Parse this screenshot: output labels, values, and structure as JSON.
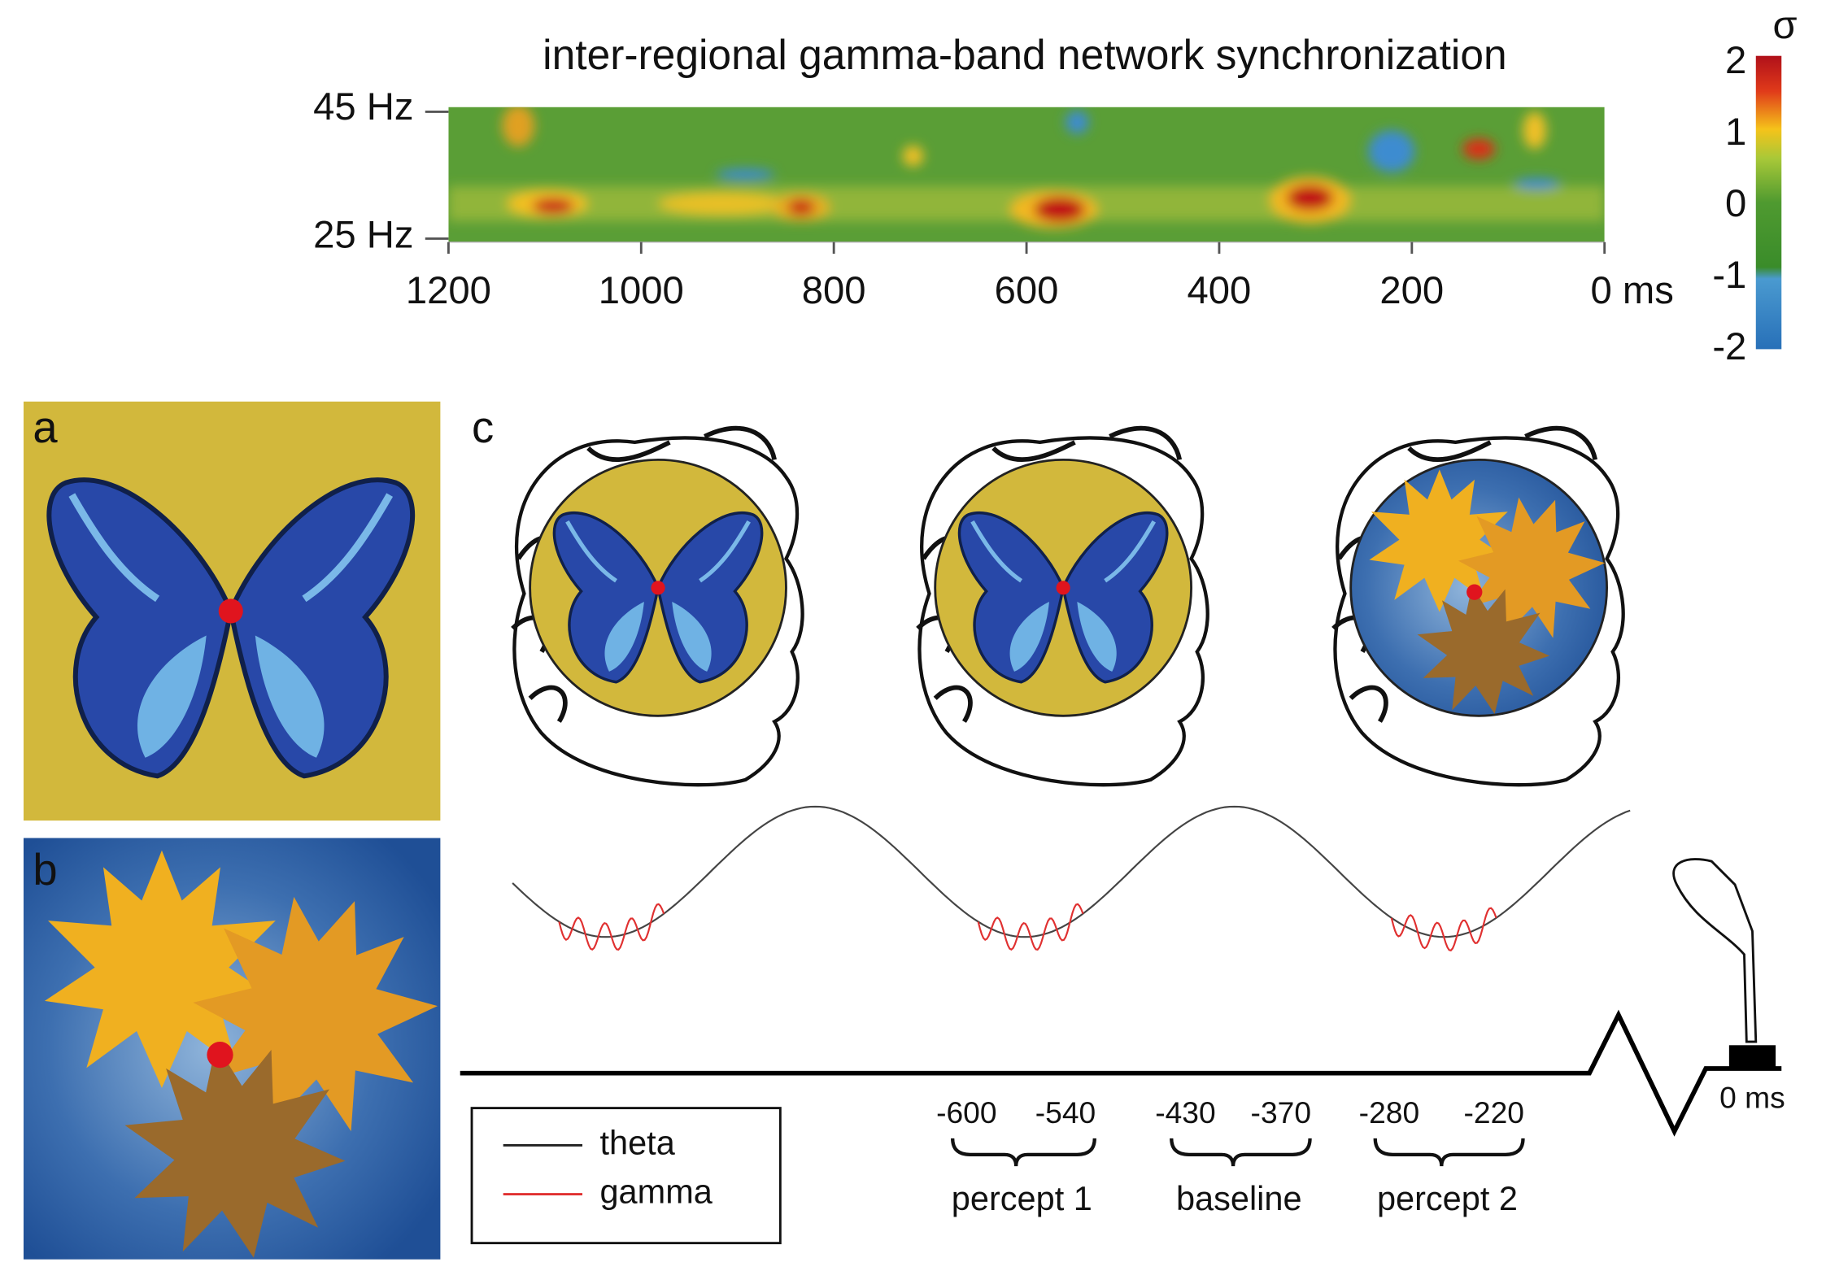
{
  "heatmap": {
    "title": "inter-regional gamma-band network synchronization",
    "y_labels": [
      "45 Hz",
      "25 Hz"
    ],
    "x_labels": [
      "1200",
      "1000",
      "800",
      "600",
      "400",
      "200",
      "0 ms"
    ],
    "colorbar": {
      "symbol": "σ",
      "labels": [
        "2",
        "1",
        "0",
        "-1",
        "-2"
      ]
    }
  },
  "panels": {
    "a": "a",
    "b": "b",
    "c": "c"
  },
  "legend": [
    "theta",
    "gamma"
  ],
  "windows": [
    {
      "start": "-600",
      "end": "-540",
      "label": "percept 1"
    },
    {
      "start": "-430",
      "end": "-370",
      "label": "baseline"
    },
    {
      "start": "-280",
      "end": "-220",
      "label": "percept 2"
    }
  ],
  "response_label": "0 ms"
}
